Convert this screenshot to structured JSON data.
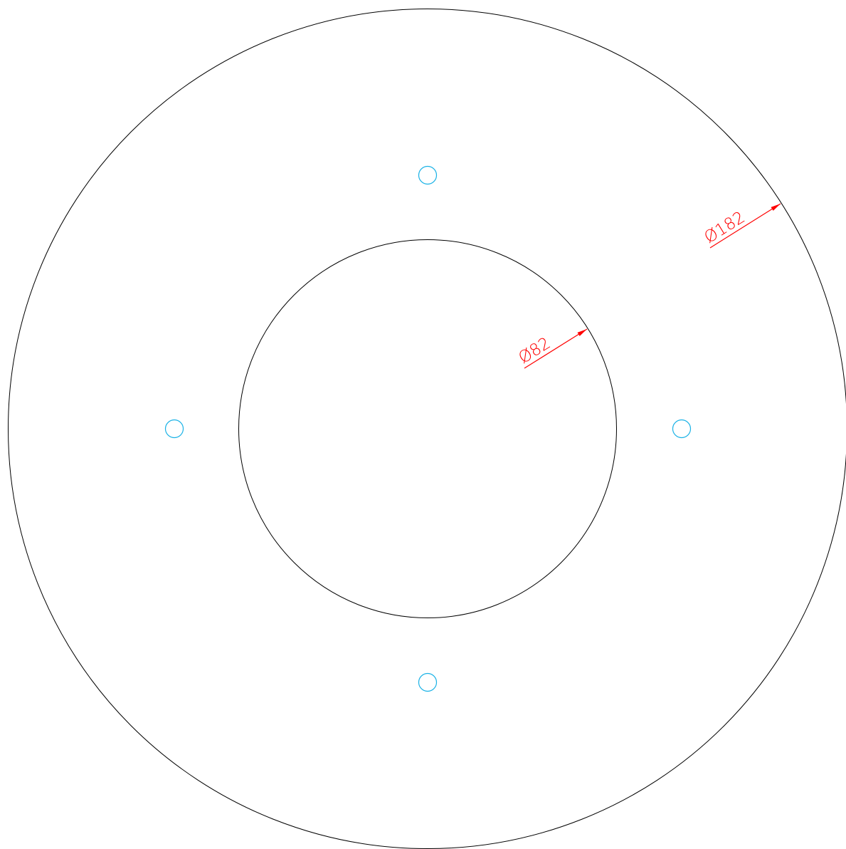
{
  "dimensions": [
    {
      "label": "Ø182"
    },
    {
      "label": "Ø82"
    }
  ]
}
